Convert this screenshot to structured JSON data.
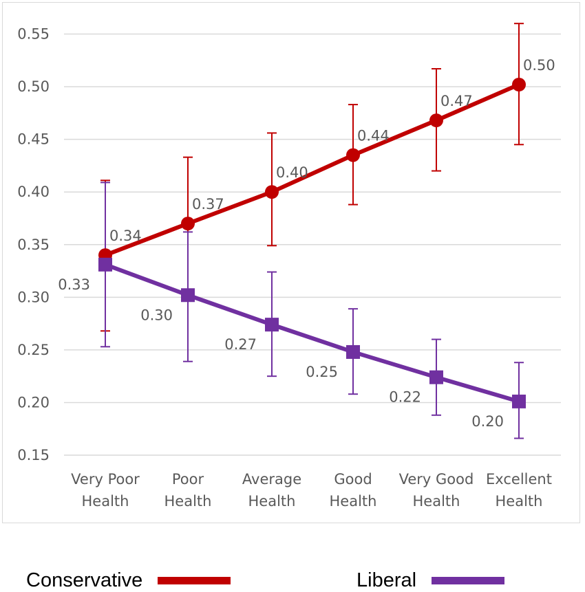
{
  "chart_data": {
    "type": "line",
    "categories": [
      "Very Poor Health",
      "Poor Health",
      "Average Health",
      "Good Health",
      "Very Good Health",
      "Excellent Health"
    ],
    "category_lines": [
      [
        "Very Poor",
        "Health"
      ],
      [
        "Poor",
        "Health"
      ],
      [
        "Average",
        "Health"
      ],
      [
        "Good",
        "Health"
      ],
      [
        "Very Good",
        "Health"
      ],
      [
        "Excellent",
        "Health"
      ]
    ],
    "ylim": [
      0.15,
      0.55
    ],
    "yticks": [
      "0.15",
      "0.20",
      "0.25",
      "0.30",
      "0.35",
      "0.40",
      "0.45",
      "0.50",
      "0.55"
    ],
    "grid": true,
    "legend_position": "bottom",
    "series": [
      {
        "name": "Conservative",
        "color": "#c00000",
        "marker": "circle",
        "values": [
          0.34,
          0.37,
          0.4,
          0.435,
          0.468,
          0.502
        ],
        "labels": [
          "0.34",
          "0.37",
          "0.40",
          "0.44",
          "0.47",
          "0.50"
        ],
        "err_low": [
          0.268,
          0.307,
          0.349,
          0.388,
          0.42,
          0.445
        ],
        "err_high": [
          0.411,
          0.433,
          0.456,
          0.483,
          0.517,
          0.56
        ]
      },
      {
        "name": "Liberal",
        "color": "#7030a0",
        "marker": "square",
        "values": [
          0.331,
          0.302,
          0.274,
          0.248,
          0.224,
          0.201
        ],
        "labels": [
          "0.33",
          "0.30",
          "0.27",
          "0.25",
          "0.22",
          "0.20"
        ],
        "err_low": [
          0.253,
          0.239,
          0.225,
          0.208,
          0.188,
          0.166
        ],
        "err_high": [
          0.409,
          0.362,
          0.324,
          0.289,
          0.26,
          0.238
        ]
      }
    ]
  }
}
